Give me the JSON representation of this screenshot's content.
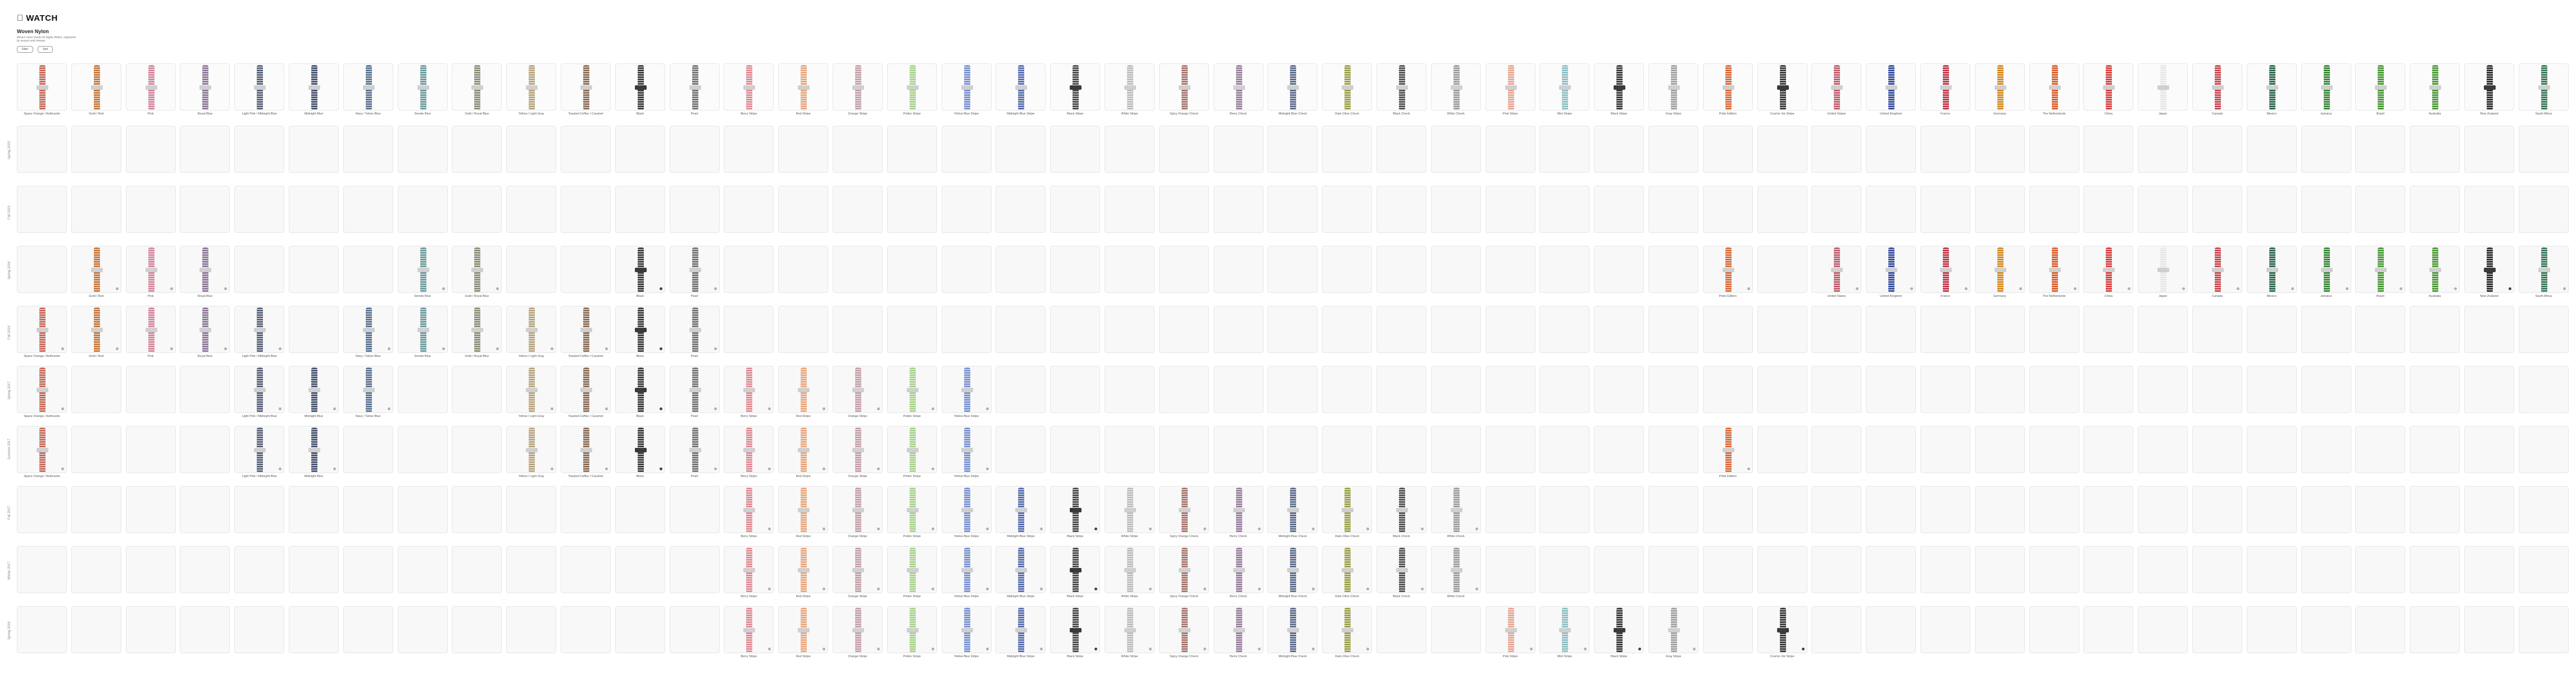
{
  "header": {
    "logo": "WATCH",
    "subtitle": "Woven Nylon",
    "description": "Woven nylon bands for Apple Watch, organized by season and release.",
    "buttons": [
      "Filter",
      "Sort"
    ]
  },
  "columns": [
    {
      "name": "Space Orange / Anthracite",
      "color": "#c66a5a"
    },
    {
      "name": "Gold / Red",
      "color": "#c7793f"
    },
    {
      "name": "Pink",
      "color": "#d4879c"
    },
    {
      "name": "Royal Blue",
      "color": "#8f7a9a"
    },
    {
      "name": "Light Pink / Midnight Blue",
      "color": "#5a6479"
    },
    {
      "name": "Midnight Blue",
      "color": "#4a5572"
    },
    {
      "name": "Navy / Tahoe Blue",
      "color": "#5d7593"
    },
    {
      "name": "Smoke Blue",
      "color": "#6d9c9e"
    },
    {
      "name": "Gold / Royal Blue",
      "color": "#8f8f7a"
    },
    {
      "name": "Yellow / Light Gray",
      "color": "#b7a580"
    },
    {
      "name": "Toasted Coffee / Caramel",
      "color": "#8e6e58"
    },
    {
      "name": "Black",
      "color": "#3f3f3f"
    },
    {
      "name": "Pearl",
      "color": "#767676"
    },
    {
      "name": "Berry Stripe",
      "color": "#df8c96"
    },
    {
      "name": "Red Stripe",
      "color": "#e9a77d"
    },
    {
      "name": "Orange Stripe",
      "color": "#c5a0a8"
    },
    {
      "name": "Pollen Stripe",
      "color": "#a8d28d"
    },
    {
      "name": "Yellow Blue Stripe",
      "color": "#7a93cf"
    },
    {
      "name": "Midnight Blue Stripe",
      "color": "#5a6fb0"
    },
    {
      "name": "Black Stripe",
      "color": "#4d4d4d"
    },
    {
      "name": "White Stripe",
      "color": "#bdbdbd"
    },
    {
      "name": "Spicy Orange Check",
      "color": "#a9776e"
    },
    {
      "name": "Berry Check",
      "color": "#9a809f"
    },
    {
      "name": "Midnight Blue Check",
      "color": "#5f6d8e"
    },
    {
      "name": "Dark Olive Check",
      "color": "#9ba24a"
    },
    {
      "name": "Black Check",
      "color": "#555555"
    },
    {
      "name": "White Check",
      "color": "#9e9e9e"
    },
    {
      "name": "Pink Stripe",
      "color": "#e7a794"
    },
    {
      "name": "Mint Stripe",
      "color": "#8fc0c4"
    },
    {
      "name": "Black Stripe",
      "color": "#3d3d3d"
    },
    {
      "name": "Gray Stripe",
      "color": "#a2a2a2"
    },
    {
      "name": "Pride Edition",
      "color": "#d96c3a"
    },
    {
      "name": "Cosmic Ink Stripe",
      "color": "#3c3c3c"
    },
    {
      "name": "United States",
      "color": "#c06070"
    },
    {
      "name": "United Kingdom",
      "color": "#3a4f9e"
    },
    {
      "name": "France",
      "color": "#c03a4a"
    },
    {
      "name": "Germany",
      "color": "#d48a20"
    },
    {
      "name": "The Netherlands",
      "color": "#d9602f"
    },
    {
      "name": "China",
      "color": "#d84343"
    },
    {
      "name": "Japan",
      "color": "#e7e7e7"
    },
    {
      "name": "Canada",
      "color": "#c84a52"
    },
    {
      "name": "Mexico",
      "color": "#2f6a4f"
    },
    {
      "name": "Jamaica",
      "color": "#3a8a3a"
    },
    {
      "name": "Brazil",
      "color": "#4a9a3a"
    },
    {
      "name": "Australia",
      "color": "#4f9a3a"
    },
    {
      "name": "New Zealand",
      "color": "#2f2f2f"
    },
    {
      "name": "South Africa",
      "color": "#3a7a5a"
    }
  ],
  "rows": [
    {
      "label": "Spring 2015",
      "filled": []
    },
    {
      "label": "Fall 2015",
      "filled": []
    },
    {
      "label": "Spring 2016",
      "filled": [
        1,
        2,
        3,
        7,
        8,
        11,
        12,
        31,
        33,
        34,
        35,
        36,
        37,
        38,
        39,
        40,
        41,
        42,
        43,
        44,
        45,
        46
      ]
    },
    {
      "label": "Fall 2016",
      "filled": [
        0,
        1,
        2,
        3,
        4,
        6,
        7,
        8,
        9,
        10,
        11,
        12
      ]
    },
    {
      "label": "Spring 2017",
      "filled": [
        0,
        4,
        5,
        6,
        9,
        10,
        11,
        12,
        13,
        14,
        15,
        16,
        17
      ]
    },
    {
      "label": "Summer 2017",
      "filled": [
        0,
        4,
        5,
        9,
        10,
        11,
        12,
        13,
        14,
        15,
        16,
        17,
        31
      ]
    },
    {
      "label": "Fall 2017",
      "filled": [
        13,
        14,
        15,
        16,
        17,
        18,
        19,
        20,
        21,
        22,
        23,
        24,
        25,
        26
      ]
    },
    {
      "label": "Winter 2017",
      "filled": [
        13,
        14,
        15,
        16,
        17,
        18,
        19,
        20,
        21,
        22,
        23,
        24,
        25,
        26
      ]
    },
    {
      "label": "Spring 2018",
      "filled": [
        13,
        14,
        15,
        16,
        17,
        18,
        19,
        20,
        21,
        22,
        23,
        24,
        27,
        28,
        29,
        30,
        32
      ]
    }
  ]
}
